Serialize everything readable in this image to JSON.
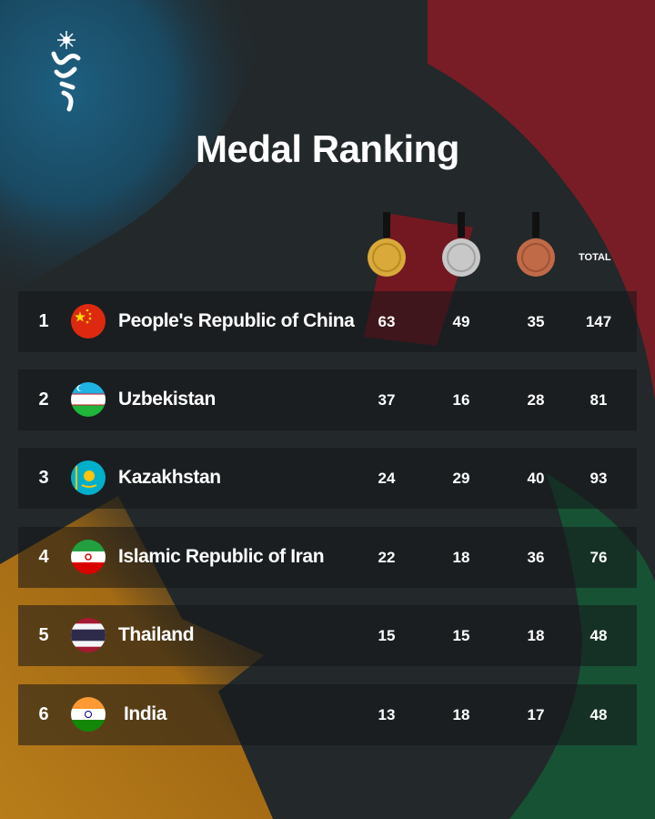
{
  "title": "Medal Ranking",
  "header": {
    "total_label": "TOTAL",
    "medals": [
      "gold-medal-icon",
      "silver-medal-icon",
      "bronze-medal-icon"
    ]
  },
  "colors": {
    "background": "#23282a",
    "gold": "#d9a93a",
    "silver": "#c8c8c8",
    "bronze": "#c06a48"
  },
  "rows": [
    {
      "rank": "1",
      "country": "People's Republic of China",
      "flag": "china-flag-icon",
      "gold": "63",
      "silver": "49",
      "bronze": "35",
      "total": "147"
    },
    {
      "rank": "2",
      "country": "Uzbekistan",
      "flag": "uzbekistan-flag-icon",
      "gold": "37",
      "silver": "16",
      "bronze": "28",
      "total": "81"
    },
    {
      "rank": "3",
      "country": "Kazakhstan",
      "flag": "kazakhstan-flag-icon",
      "gold": "24",
      "silver": "29",
      "bronze": "40",
      "total": "93"
    },
    {
      "rank": "4",
      "country": "Islamic Republic of Iran",
      "flag": "iran-flag-icon",
      "gold": "22",
      "silver": "18",
      "bronze": "36",
      "total": "76"
    },
    {
      "rank": "5",
      "country": "Thailand",
      "flag": "thailand-flag-icon",
      "gold": "15",
      "silver": "15",
      "bronze": "18",
      "total": "48"
    },
    {
      "rank": "6",
      "country": "India",
      "flag": "india-flag-icon",
      "gold": "13",
      "silver": "18",
      "bronze": "17",
      "total": "48"
    }
  ]
}
